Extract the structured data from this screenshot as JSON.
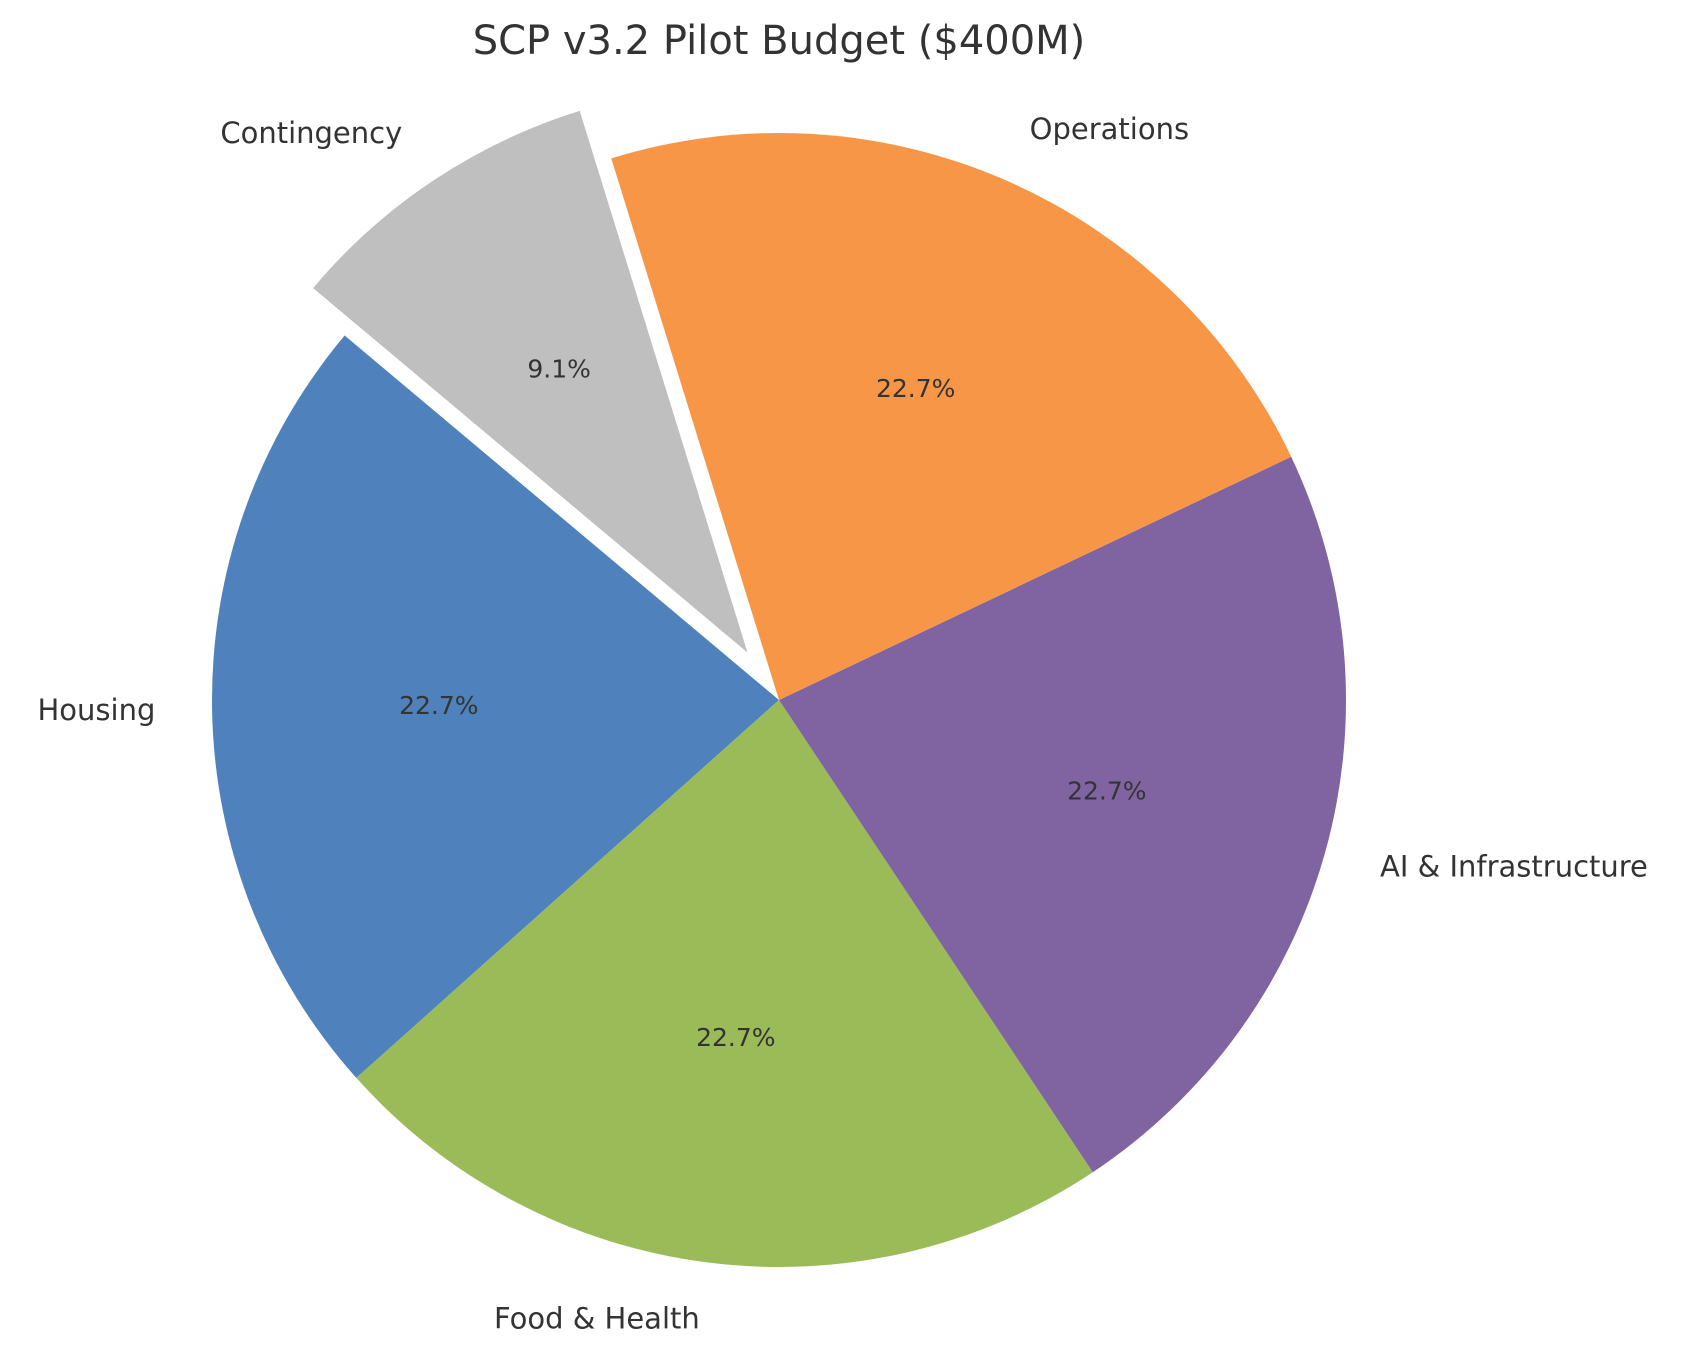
{
  "chart_data": {
    "type": "pie",
    "title": "SCP v3.2 Pilot Budget ($400M)",
    "slices": [
      {
        "label": "Housing",
        "value": 22.7,
        "pct_label": "22.7%",
        "color": "#4F81BD",
        "exploded": false
      },
      {
        "label": "Food & Health",
        "value": 22.7,
        "pct_label": "22.7%",
        "color": "#9BBB59",
        "exploded": false
      },
      {
        "label": "AI & Infrastructure",
        "value": 22.7,
        "pct_label": "22.7%",
        "color": "#8064A2",
        "exploded": false
      },
      {
        "label": "Operations",
        "value": 22.7,
        "pct_label": "22.7%",
        "color": "#F79646",
        "exploded": false
      },
      {
        "label": "Contingency",
        "value": 9.1,
        "pct_label": "9.1%",
        "color": "#BFBFBF",
        "exploded": true
      }
    ]
  }
}
